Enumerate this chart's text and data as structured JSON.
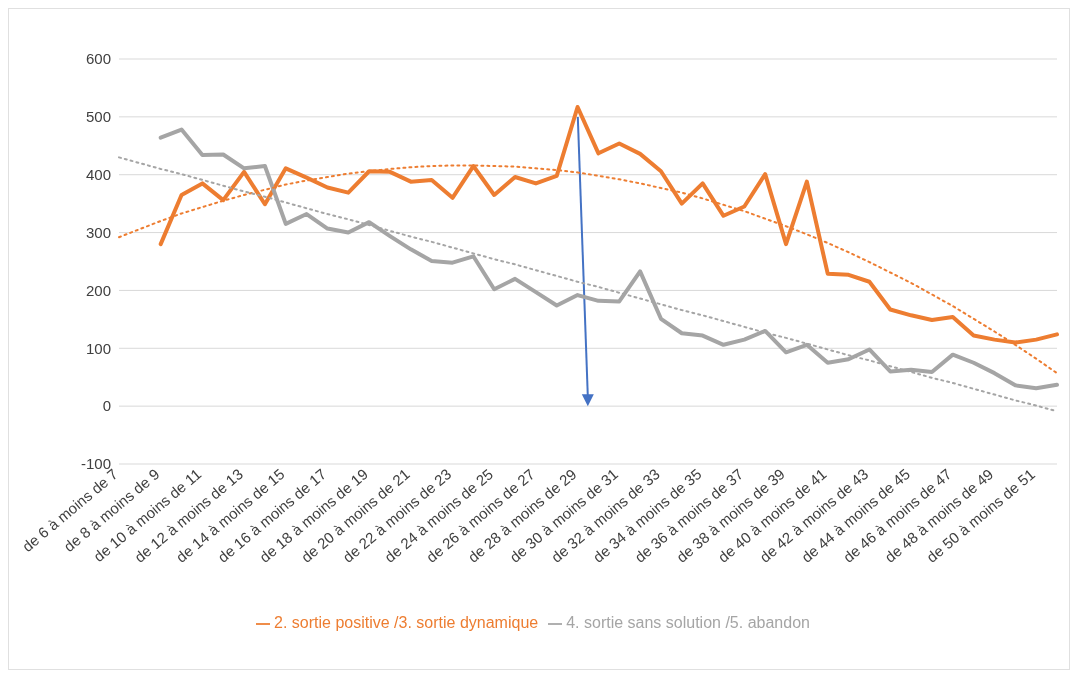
{
  "chart_data": {
    "type": "line",
    "categories": [
      "de 6 à moins de 7",
      null,
      "de 8 à moins de 9",
      null,
      "de 10 à moins de 11",
      null,
      "de 12 à moins de 13",
      null,
      "de 14 à moins de 15",
      null,
      "de 16 à moins de 17",
      null,
      "de 18 à moins de 19",
      null,
      "de 20 à moins de 21",
      null,
      "de 22 à moins de 23",
      null,
      "de 24 à moins de 25",
      null,
      "de 26 à moins de 27",
      null,
      "de 28 à moins de 29",
      null,
      "de 30 à moins de 31",
      null,
      "de 32 à moins de 33",
      null,
      "de 34 à moins de 35",
      null,
      "de 36 à moins de 37",
      null,
      "de 38 à moins de 39",
      null,
      "de 40 à moins de 41",
      null,
      "de 42 à moins de 43",
      null,
      "de 44 à moins de 45",
      null,
      "de 46 à moins de 47",
      null,
      "de 48 à moins de 49",
      null,
      "de 50 à moins de 51",
      null
    ],
    "series": [
      {
        "name": "2. sortie positive /3. sortie dynamique",
        "color": "#ed7d31",
        "values": [
          null,
          null,
          280,
          365,
          385,
          356,
          405,
          349,
          411,
          395,
          378,
          369,
          406,
          405,
          388,
          391,
          360,
          415,
          365,
          396,
          385,
          398,
          517,
          437,
          454,
          436,
          406,
          350,
          385,
          329,
          345,
          401,
          280,
          388,
          229,
          227,
          215,
          167,
          157,
          149,
          154,
          122,
          115,
          110,
          115,
          124
        ]
      },
      {
        "name": "4. sortie sans solution /5. abandon",
        "color": "#a5a5a5",
        "values": [
          null,
          null,
          464,
          478,
          434,
          435,
          411,
          415,
          315,
          332,
          307,
          300,
          318,
          294,
          271,
          251,
          248,
          259,
          202,
          220,
          197,
          174,
          192,
          182,
          181,
          233,
          151,
          126,
          122,
          106,
          115,
          130,
          93,
          106,
          75,
          81,
          98,
          60,
          63,
          59,
          89,
          75,
          57,
          36,
          31,
          37
        ]
      },
      {
        "type": "line",
        "line_style": "dotted",
        "color": "#ed7d31",
        "values": [
          292,
          306,
          320,
          333,
          344,
          355,
          365,
          374,
          383,
          390,
          396,
          402,
          406,
          410,
          413,
          415,
          416,
          416,
          415,
          414,
          411,
          408,
          404,
          398,
          392,
          385,
          377,
          369,
          359,
          348,
          337,
          324,
          311,
          297,
          282,
          266,
          249,
          231,
          213,
          193,
          173,
          151,
          129,
          106,
          82,
          57
        ]
      },
      {
        "type": "line",
        "line_style": "dotted",
        "color": "#a5a5a5",
        "values": [
          430,
          420,
          410,
          401,
          391,
          381,
          371,
          362,
          352,
          342,
          332,
          323,
          313,
          303,
          293,
          284,
          274,
          264,
          254,
          245,
          235,
          225,
          215,
          206,
          196,
          186,
          176,
          166,
          157,
          147,
          137,
          127,
          118,
          108,
          98,
          88,
          79,
          69,
          59,
          49,
          40,
          30,
          20,
          10,
          1,
          -9
        ]
      }
    ],
    "ylim": [
      -100,
      600
    ],
    "yticks": [
      -100,
      0,
      100,
      200,
      300,
      400,
      500,
      600
    ],
    "grid": "y",
    "legend": "bottom"
  }
}
